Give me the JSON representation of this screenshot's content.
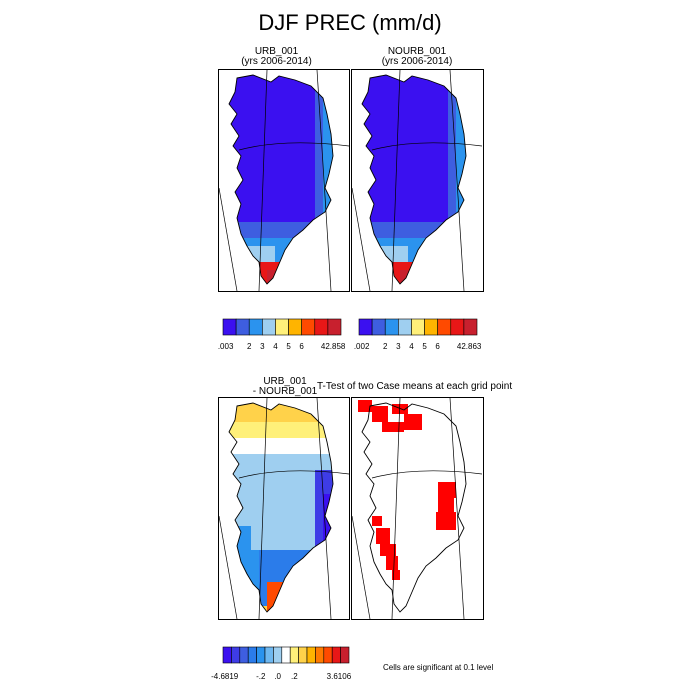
{
  "title": "DJF PREC (mm/d)",
  "panels": [
    {
      "label": "URB_001",
      "sublabel": "(yrs 2006-2014)"
    },
    {
      "label": "NOURB_001",
      "sublabel": "(yrs 2006-2014)"
    },
    {
      "label": "URB_001",
      "sublabel": "- NOURB_001"
    },
    {
      "label": "T-Test of two Case means at each grid point",
      "sublabel": ""
    }
  ],
  "footnote": "Cells are significant at 0.1 level",
  "chart_data": [
    {
      "type": "heatmap",
      "panel": "URB_001 (yrs 2006-2014)",
      "units": "mm/d",
      "colorbar": {
        "min": 0.003,
        "max": 42.858,
        "levels": [
          2,
          3,
          4,
          5,
          6
        ],
        "tick_labels": [
          ".003",
          "2",
          "3",
          "4",
          "5",
          "6",
          "42.858"
        ],
        "colors": [
          "#3b10f0",
          "#3e5ee0",
          "#2b93ee",
          "#9fcff0",
          "#fff07a",
          "#ffb400",
          "#ff4a00",
          "#e81717",
          "#c8202e"
        ]
      }
    },
    {
      "type": "heatmap",
      "panel": "NOURB_001 (yrs 2006-2014)",
      "units": "mm/d",
      "colorbar": {
        "min": 0.002,
        "max": 42.863,
        "levels": [
          2,
          3,
          4,
          5,
          6
        ],
        "tick_labels": [
          ".002",
          "2",
          "3",
          "4",
          "5",
          "6",
          "42.863"
        ],
        "colors": [
          "#3b10f0",
          "#3e5ee0",
          "#2b93ee",
          "#9fcff0",
          "#fff07a",
          "#ffb400",
          "#ff4a00",
          "#e81717",
          "#c8202e"
        ]
      }
    },
    {
      "type": "heatmap",
      "panel": "URB_001 - NOURB_001",
      "units": "mm/d",
      "colorbar": {
        "min": -4.6819,
        "max": 3.6106,
        "tick_labels": [
          "-4.6819",
          "-.2",
          ".0",
          ".2",
          "3.6106"
        ],
        "colors": [
          "#3b10f0",
          "#3e3ce6",
          "#3e5ee0",
          "#2b7cea",
          "#2b93ee",
          "#6fb8f0",
          "#9fcff0",
          "#ffffff",
          "#fff07a",
          "#ffd24a",
          "#ffb400",
          "#ff7a00",
          "#ff4a00",
          "#e81717",
          "#c8202e"
        ]
      }
    },
    {
      "type": "heatmap",
      "panel": "T-Test of two Case means at each grid point",
      "significance_level": 0.1,
      "significant_color": "#ff0000"
    }
  ]
}
